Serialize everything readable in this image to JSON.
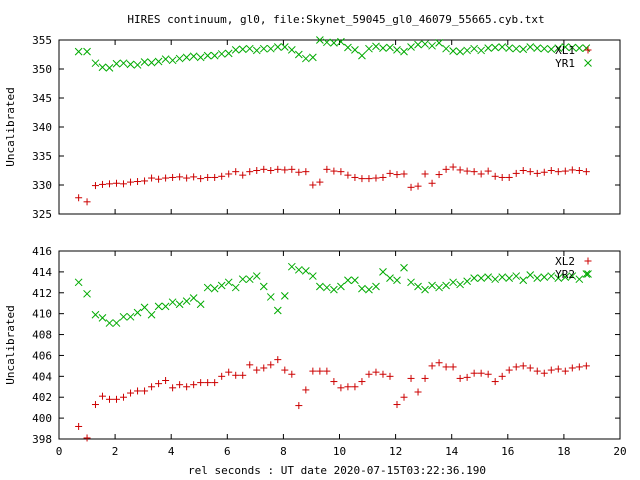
{
  "chart_data": [
    {
      "type": "scatter",
      "title": "HIRES continuum, gl0, file:Skynet_59045_gl0_46079_55665.cyb.txt",
      "xlabel": "",
      "ylabel": "Uncalibrated",
      "xlim": [
        0,
        20
      ],
      "ylim": [
        325,
        355
      ],
      "xticks": [],
      "yticks": [
        "325",
        "330",
        "335",
        "340",
        "345",
        "350",
        "355"
      ],
      "xtick_values": [
        0,
        2,
        4,
        6,
        8,
        10,
        12,
        14,
        16,
        18,
        20
      ],
      "ytick_values": [
        325,
        330,
        335,
        340,
        345,
        350,
        355
      ],
      "legend_position": "top-right",
      "grid": false,
      "series": [
        {
          "name": "XL1",
          "color": "#cc0000",
          "marker": "plus",
          "x": [
            0.7,
            1.0,
            1.3,
            1.55,
            1.8,
            2.05,
            2.3,
            2.55,
            2.8,
            3.05,
            3.3,
            3.55,
            3.8,
            4.05,
            4.3,
            4.55,
            4.8,
            5.05,
            5.3,
            5.55,
            5.8,
            6.05,
            6.3,
            6.55,
            6.8,
            7.05,
            7.3,
            7.55,
            7.8,
            8.05,
            8.3,
            8.55,
            8.8,
            9.05,
            9.3,
            9.55,
            9.8,
            10.05,
            10.3,
            10.55,
            10.8,
            11.05,
            11.3,
            11.55,
            11.8,
            12.05,
            12.3,
            12.55,
            12.8,
            13.05,
            13.3,
            13.55,
            13.8,
            14.05,
            14.3,
            14.55,
            14.8,
            15.05,
            15.3,
            15.55,
            15.8,
            16.05,
            16.3,
            16.55,
            16.8,
            17.05,
            17.3,
            17.55,
            17.8,
            18.05,
            18.3,
            18.55,
            18.8
          ],
          "y": [
            327.8,
            327.1,
            329.9,
            330.1,
            330.2,
            330.3,
            330.2,
            330.5,
            330.6,
            330.7,
            331.2,
            331.0,
            331.2,
            331.3,
            331.4,
            331.2,
            331.4,
            331.1,
            331.3,
            331.3,
            331.5,
            331.9,
            332.3,
            331.7,
            332.3,
            332.5,
            332.7,
            332.5,
            332.7,
            332.6,
            332.7,
            332.2,
            332.3,
            330.0,
            330.5,
            332.7,
            332.4,
            332.3,
            331.7,
            331.3,
            331.1,
            331.1,
            331.2,
            331.3,
            332.0,
            331.8,
            331.9,
            329.6,
            329.8,
            331.9,
            330.3,
            331.8,
            332.7,
            333.1,
            332.6,
            332.4,
            332.3,
            331.9,
            332.4,
            331.5,
            331.3,
            331.3,
            332.0,
            332.5,
            332.3,
            332.0,
            332.2,
            332.5,
            332.3,
            332.4,
            332.6,
            332.5,
            332.3
          ]
        },
        {
          "name": "YR1",
          "color": "#00aa00",
          "marker": "cross",
          "x": [
            0.7,
            1.0,
            1.3,
            1.55,
            1.8,
            2.05,
            2.3,
            2.55,
            2.8,
            3.05,
            3.3,
            3.55,
            3.8,
            4.05,
            4.3,
            4.55,
            4.8,
            5.05,
            5.3,
            5.55,
            5.8,
            6.05,
            6.3,
            6.55,
            6.8,
            7.05,
            7.3,
            7.55,
            7.8,
            8.05,
            8.3,
            8.55,
            8.8,
            9.05,
            9.3,
            9.55,
            9.8,
            10.05,
            10.3,
            10.55,
            10.8,
            11.05,
            11.3,
            11.55,
            11.8,
            12.05,
            12.3,
            12.55,
            12.8,
            13.05,
            13.3,
            13.55,
            13.8,
            14.05,
            14.3,
            14.55,
            14.8,
            15.05,
            15.3,
            15.55,
            15.8,
            16.05,
            16.3,
            16.55,
            16.8,
            17.05,
            17.3,
            17.55,
            17.8,
            18.05,
            18.3,
            18.55,
            18.8
          ],
          "y": [
            353.0,
            353.0,
            351.0,
            350.3,
            350.2,
            350.9,
            351.0,
            350.8,
            350.7,
            351.2,
            351.1,
            351.3,
            351.7,
            351.5,
            351.8,
            352.0,
            352.2,
            352.0,
            352.3,
            352.3,
            352.6,
            352.7,
            353.3,
            353.4,
            353.5,
            353.2,
            353.5,
            353.5,
            353.8,
            353.8,
            353.3,
            352.5,
            351.8,
            352.0,
            355.0,
            354.6,
            354.5,
            354.7,
            353.7,
            353.3,
            352.3,
            353.5,
            353.9,
            353.6,
            353.7,
            353.3,
            353.0,
            353.8,
            354.2,
            354.3,
            354.0,
            354.5,
            353.5,
            353.1,
            353.0,
            353.2,
            353.5,
            353.2,
            353.6,
            353.7,
            353.8,
            353.6,
            353.5,
            353.4,
            353.8,
            353.6,
            353.5,
            353.4,
            353.6,
            353.8,
            353.7,
            353.6,
            353.6
          ]
        }
      ]
    },
    {
      "type": "scatter",
      "title": "",
      "xlabel": "rel seconds : UT date 2020-07-15T03:22:36.190",
      "ylabel": "Uncalibrated",
      "xlim": [
        0,
        20
      ],
      "ylim": [
        398,
        416
      ],
      "xticks": [
        "0",
        "2",
        "4",
        "6",
        "8",
        "10",
        "12",
        "14",
        "16",
        "18",
        "20"
      ],
      "yticks": [
        "398",
        "400",
        "402",
        "404",
        "406",
        "408",
        "410",
        "412",
        "414",
        "416"
      ],
      "xtick_values": [
        0,
        2,
        4,
        6,
        8,
        10,
        12,
        14,
        16,
        18,
        20
      ],
      "ytick_values": [
        398,
        400,
        402,
        404,
        406,
        408,
        410,
        412,
        414,
        416
      ],
      "legend_position": "top-right",
      "grid": false,
      "series": [
        {
          "name": "XL2",
          "color": "#cc0000",
          "marker": "plus",
          "x": [
            0.7,
            1.0,
            1.3,
            1.55,
            1.8,
            2.05,
            2.3,
            2.55,
            2.8,
            3.05,
            3.3,
            3.55,
            3.8,
            4.05,
            4.3,
            4.55,
            4.8,
            5.05,
            5.3,
            5.55,
            5.8,
            6.05,
            6.3,
            6.55,
            6.8,
            7.05,
            7.3,
            7.55,
            7.8,
            8.05,
            8.3,
            8.55,
            8.8,
            9.05,
            9.3,
            9.55,
            9.8,
            10.05,
            10.3,
            10.55,
            10.8,
            11.05,
            11.3,
            11.55,
            11.8,
            12.05,
            12.3,
            12.55,
            12.8,
            13.05,
            13.3,
            13.55,
            13.8,
            14.05,
            14.3,
            14.55,
            14.8,
            15.05,
            15.3,
            15.55,
            15.8,
            16.05,
            16.3,
            16.55,
            16.8,
            17.05,
            17.3,
            17.55,
            17.8,
            18.05,
            18.3,
            18.55,
            18.8
          ],
          "y": [
            399.2,
            398.1,
            401.3,
            402.1,
            401.8,
            401.8,
            402.0,
            402.4,
            402.6,
            402.6,
            403.0,
            403.3,
            403.6,
            402.9,
            403.2,
            403.0,
            403.2,
            403.4,
            403.4,
            403.4,
            404.0,
            404.4,
            404.1,
            404.1,
            405.1,
            404.6,
            404.8,
            405.1,
            405.6,
            404.6,
            404.2,
            401.2,
            402.7,
            404.5,
            404.5,
            404.5,
            403.5,
            402.9,
            403.0,
            403.0,
            403.5,
            404.2,
            404.4,
            404.2,
            404.0,
            401.3,
            402.0,
            403.8,
            402.5,
            403.8,
            405.0,
            405.3,
            404.9,
            404.9,
            403.8,
            403.9,
            404.3,
            404.3,
            404.2,
            403.5,
            404.0,
            404.6,
            404.9,
            405.0,
            404.8,
            404.5,
            404.3,
            404.6,
            404.7,
            404.5,
            404.8,
            404.9,
            405.0
          ]
        },
        {
          "name": "YR2",
          "color": "#00aa00",
          "marker": "cross",
          "x": [
            0.7,
            1.0,
            1.3,
            1.55,
            1.8,
            2.05,
            2.3,
            2.55,
            2.8,
            3.05,
            3.3,
            3.55,
            3.8,
            4.05,
            4.3,
            4.55,
            4.8,
            5.05,
            5.3,
            5.55,
            5.8,
            6.05,
            6.3,
            6.55,
            6.8,
            7.05,
            7.3,
            7.55,
            7.8,
            8.05,
            8.3,
            8.55,
            8.8,
            9.05,
            9.3,
            9.55,
            9.8,
            10.05,
            10.3,
            10.55,
            10.8,
            11.05,
            11.3,
            11.55,
            11.8,
            12.05,
            12.3,
            12.55,
            12.8,
            13.05,
            13.3,
            13.55,
            13.8,
            14.05,
            14.3,
            14.55,
            14.8,
            15.05,
            15.3,
            15.55,
            15.8,
            16.05,
            16.3,
            16.55,
            16.8,
            17.05,
            17.3,
            17.55,
            17.8,
            18.05,
            18.3,
            18.55,
            18.8
          ],
          "y": [
            413.0,
            411.9,
            409.9,
            409.6,
            409.1,
            409.1,
            409.7,
            409.7,
            410.1,
            410.6,
            409.9,
            410.7,
            410.7,
            411.1,
            410.9,
            411.2,
            411.5,
            410.9,
            412.5,
            412.4,
            412.7,
            413.0,
            412.5,
            413.3,
            413.3,
            413.6,
            412.6,
            411.6,
            410.3,
            411.7,
            414.5,
            414.2,
            414.1,
            413.6,
            412.6,
            412.5,
            412.3,
            412.6,
            413.2,
            413.2,
            412.4,
            412.3,
            412.6,
            414.0,
            413.4,
            413.2,
            414.4,
            413.0,
            412.6,
            412.3,
            412.7,
            412.5,
            412.7,
            413.0,
            412.8,
            413.1,
            413.4,
            413.4,
            413.5,
            413.3,
            413.5,
            413.4,
            413.6,
            413.2,
            413.7,
            413.4,
            413.5,
            413.6,
            413.4,
            413.5,
            413.6,
            413.3,
            413.8
          ]
        }
      ]
    }
  ]
}
